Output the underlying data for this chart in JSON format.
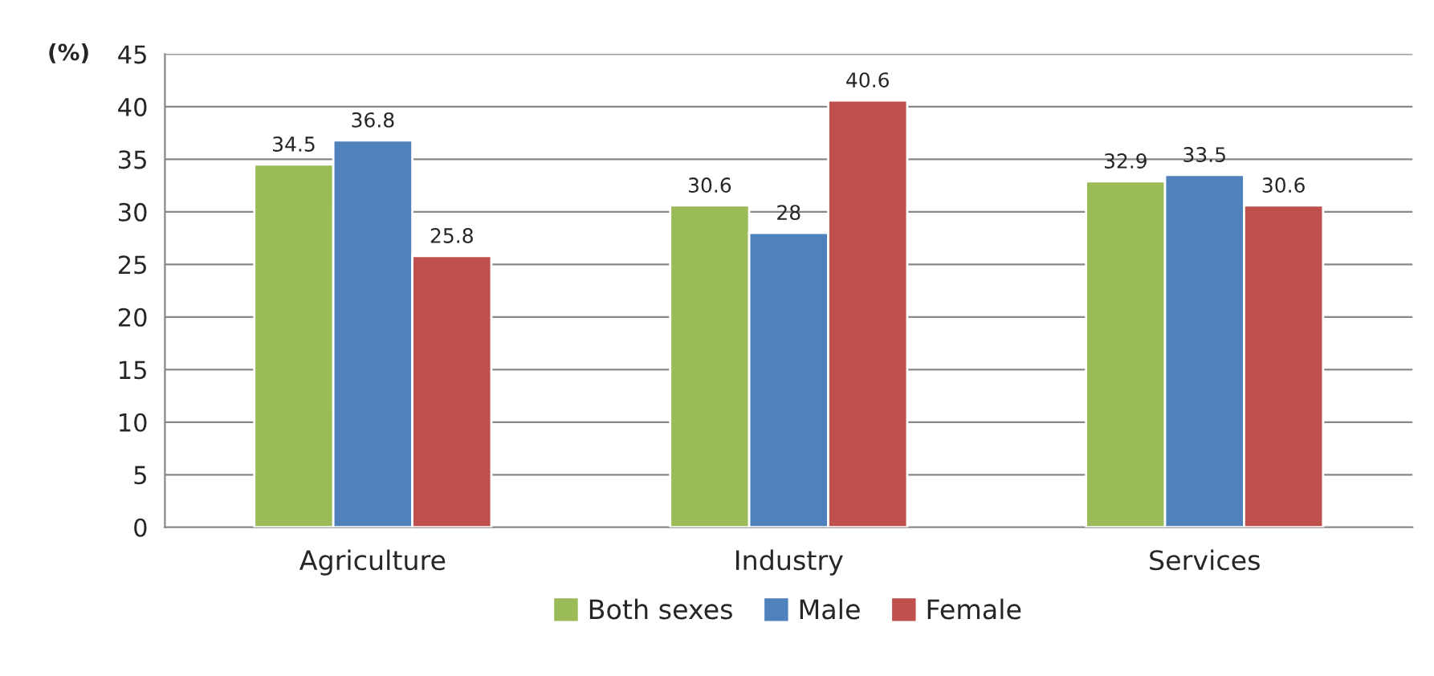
{
  "chart_data": {
    "type": "bar",
    "ylabel": "(%)",
    "categories": [
      "Agriculture",
      "Industry",
      "Services"
    ],
    "series": [
      {
        "name": "Both sexes",
        "color": "#9bbb59",
        "values": [
          34.5,
          30.6,
          32.9
        ]
      },
      {
        "name": "Male",
        "color": "#4f81bd",
        "values": [
          36.8,
          28,
          33.5
        ]
      },
      {
        "name": "Female",
        "color": "#c0504d",
        "values": [
          25.8,
          40.6,
          30.6
        ]
      }
    ],
    "ylim": [
      0,
      45
    ],
    "yticks": [
      0,
      5,
      10,
      15,
      20,
      25,
      30,
      35,
      40,
      45
    ],
    "grid": "y",
    "legend": "bottom",
    "data_labels": true
  }
}
